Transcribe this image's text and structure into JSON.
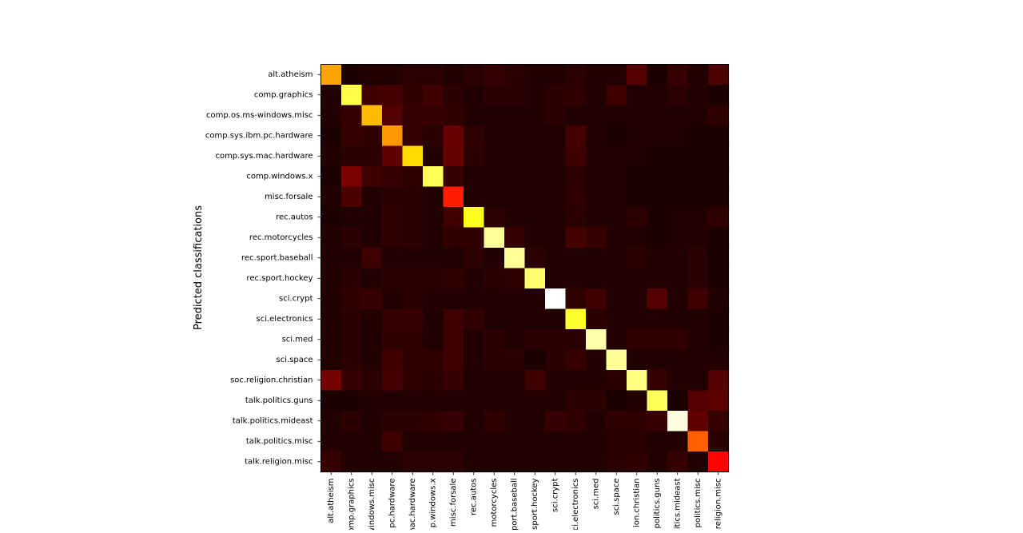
{
  "chart_data": {
    "type": "heatmap",
    "title": "",
    "xlabel": "",
    "ylabel": "Predicted classifications",
    "colormap": "hot",
    "colorscale": {
      "min": 0,
      "max": 1
    },
    "row_labels": [
      "alt.atheism",
      "comp.graphics",
      "comp.os.ms-windows.misc",
      "comp.sys.ibm.pc.hardware",
      "comp.sys.mac.hardware",
      "comp.windows.x",
      "misc.forsale",
      "rec.autos",
      "rec.motorcycles",
      "rec.sport.baseball",
      "rec.sport.hockey",
      "sci.crypt",
      "sci.electronics",
      "sci.med",
      "sci.space",
      "soc.religion.christian",
      "talk.politics.guns",
      "talk.politics.mideast",
      "talk.politics.misc",
      "talk.religion.misc"
    ],
    "col_labels": [
      "alt.atheism",
      "comp.graphics",
      "windows.misc",
      "pc.hardware",
      "mac.hardware",
      "p.windows.x",
      "misc.forsale",
      "rec.autos",
      "motorcycles",
      "port.baseball",
      "sport.hockey",
      "sci.crypt",
      "ci.electronics",
      "sci.med",
      "sci.space",
      "ion.christian",
      "politics.guns",
      "itics.mideast",
      "politics.misc",
      "religion.misc"
    ],
    "values": [
      [
        0.62,
        0.0,
        0.01,
        0.01,
        0.02,
        0.02,
        0.01,
        0.02,
        0.04,
        0.02,
        0.01,
        0.01,
        0.02,
        0.01,
        0.01,
        0.08,
        0.0,
        0.04,
        0.01,
        0.07
      ],
      [
        0.01,
        0.82,
        0.05,
        0.06,
        0.03,
        0.05,
        0.02,
        0.01,
        0.02,
        0.02,
        0.01,
        0.02,
        0.03,
        0.01,
        0.05,
        0.01,
        0.01,
        0.02,
        0.01,
        0.0
      ],
      [
        0.01,
        0.04,
        0.65,
        0.08,
        0.04,
        0.04,
        0.03,
        0.01,
        0.01,
        0.01,
        0.01,
        0.02,
        0.01,
        0.01,
        0.01,
        0.01,
        0.01,
        0.01,
        0.01,
        0.03
      ],
      [
        0.0,
        0.04,
        0.03,
        0.6,
        0.04,
        0.02,
        0.11,
        0.03,
        0.01,
        0.01,
        0.01,
        0.01,
        0.06,
        0.01,
        0.0,
        0.01,
        0.01,
        0.01,
        0.0,
        0.0
      ],
      [
        0.01,
        0.02,
        0.02,
        0.1,
        0.7,
        0.01,
        0.11,
        0.02,
        0.01,
        0.01,
        0.01,
        0.01,
        0.05,
        0.01,
        0.01,
        0.01,
        0.0,
        0.0,
        0.0,
        0.0
      ],
      [
        0.0,
        0.14,
        0.05,
        0.04,
        0.03,
        0.84,
        0.04,
        0.01,
        0.01,
        0.01,
        0.01,
        0.01,
        0.02,
        0.01,
        0.01,
        0.0,
        0.0,
        0.0,
        0.0,
        0.0
      ],
      [
        0.01,
        0.07,
        0.01,
        0.02,
        0.02,
        0.01,
        0.42,
        0.01,
        0.01,
        0.01,
        0.01,
        0.01,
        0.03,
        0.01,
        0.01,
        0.0,
        0.0,
        0.0,
        0.0,
        0.0
      ],
      [
        0.0,
        0.01,
        0.01,
        0.03,
        0.02,
        0.01,
        0.05,
        0.78,
        0.02,
        0.01,
        0.01,
        0.01,
        0.02,
        0.01,
        0.01,
        0.02,
        0.0,
        0.01,
        0.01,
        0.03
      ],
      [
        0.01,
        0.02,
        0.01,
        0.03,
        0.02,
        0.01,
        0.03,
        0.03,
        0.9,
        0.04,
        0.01,
        0.01,
        0.06,
        0.04,
        0.01,
        0.01,
        0.0,
        0.01,
        0.01,
        0.0
      ],
      [
        0.01,
        0.01,
        0.05,
        0.01,
        0.01,
        0.01,
        0.01,
        0.02,
        0.01,
        0.9,
        0.02,
        0.01,
        0.01,
        0.01,
        0.01,
        0.02,
        0.01,
        0.01,
        0.02,
        0.0
      ],
      [
        0.01,
        0.02,
        0.01,
        0.02,
        0.02,
        0.02,
        0.03,
        0.01,
        0.02,
        0.03,
        0.86,
        0.01,
        0.01,
        0.01,
        0.01,
        0.01,
        0.01,
        0.01,
        0.02,
        0.0
      ],
      [
        0.01,
        0.03,
        0.04,
        0.01,
        0.02,
        0.01,
        0.01,
        0.01,
        0.01,
        0.01,
        0.01,
        1.0,
        0.03,
        0.05,
        0.01,
        0.01,
        0.08,
        0.01,
        0.05,
        0.01
      ],
      [
        0.01,
        0.02,
        0.01,
        0.04,
        0.04,
        0.01,
        0.05,
        0.03,
        0.01,
        0.01,
        0.01,
        0.01,
        0.8,
        0.02,
        0.01,
        0.01,
        0.01,
        0.01,
        0.01,
        0.0
      ],
      [
        0.01,
        0.02,
        0.01,
        0.03,
        0.03,
        0.01,
        0.05,
        0.01,
        0.02,
        0.01,
        0.02,
        0.02,
        0.02,
        0.92,
        0.01,
        0.03,
        0.03,
        0.03,
        0.01,
        0.0
      ],
      [
        0.01,
        0.02,
        0.01,
        0.05,
        0.03,
        0.03,
        0.05,
        0.01,
        0.02,
        0.02,
        0.0,
        0.02,
        0.04,
        0.01,
        0.9,
        0.01,
        0.01,
        0.01,
        0.01,
        0.01
      ],
      [
        0.13,
        0.04,
        0.02,
        0.06,
        0.03,
        0.02,
        0.04,
        0.01,
        0.01,
        0.01,
        0.05,
        0.01,
        0.01,
        0.01,
        0.02,
        0.88,
        0.04,
        0.01,
        0.01,
        0.08
      ],
      [
        0.0,
        0.0,
        0.01,
        0.01,
        0.01,
        0.01,
        0.01,
        0.01,
        0.01,
        0.01,
        0.01,
        0.01,
        0.02,
        0.02,
        0.0,
        0.01,
        0.84,
        0.0,
        0.08,
        0.09
      ],
      [
        0.01,
        0.02,
        0.01,
        0.02,
        0.02,
        0.03,
        0.04,
        0.01,
        0.03,
        0.01,
        0.01,
        0.04,
        0.03,
        0.01,
        0.03,
        0.03,
        0.04,
        0.97,
        0.1,
        0.04
      ],
      [
        0.01,
        0.01,
        0.01,
        0.05,
        0.01,
        0.01,
        0.01,
        0.01,
        0.01,
        0.01,
        0.01,
        0.01,
        0.01,
        0.01,
        0.02,
        0.02,
        0.01,
        0.01,
        0.52,
        0.02
      ],
      [
        0.04,
        0.01,
        0.01,
        0.01,
        0.02,
        0.02,
        0.02,
        0.01,
        0.01,
        0.01,
        0.01,
        0.01,
        0.01,
        0.01,
        0.02,
        0.03,
        0.01,
        0.04,
        0.01,
        0.38
      ]
    ],
    "grid": false
  }
}
